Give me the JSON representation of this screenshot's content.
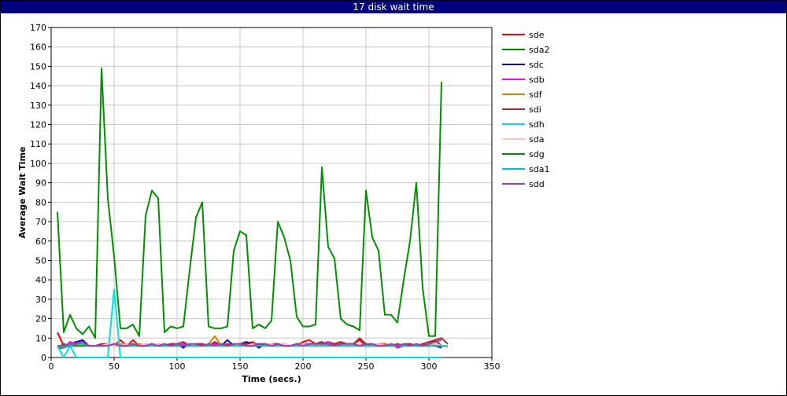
{
  "window": {
    "title": "17 disk wait time"
  },
  "chart_data": {
    "type": "line",
    "title": "17 disk wait time",
    "xlabel": "Time (secs.)",
    "ylabel": "Average Wait Time",
    "xlim": [
      0,
      350
    ],
    "ylim": [
      0,
      170
    ],
    "xticks": [
      0,
      50,
      100,
      150,
      200,
      250,
      300,
      350
    ],
    "yticks": [
      0,
      10,
      20,
      30,
      40,
      50,
      60,
      70,
      80,
      90,
      100,
      110,
      120,
      130,
      140,
      150,
      160,
      170
    ],
    "grid": true,
    "legend": "right",
    "x": [
      5,
      10,
      15,
      20,
      25,
      30,
      35,
      40,
      45,
      50,
      55,
      60,
      65,
      70,
      75,
      80,
      85,
      90,
      95,
      100,
      105,
      110,
      115,
      120,
      125,
      130,
      135,
      140,
      145,
      150,
      155,
      160,
      165,
      170,
      175,
      180,
      185,
      190,
      195,
      200,
      205,
      210,
      215,
      220,
      225,
      230,
      235,
      240,
      245,
      250,
      255,
      260,
      265,
      270,
      275,
      280,
      285,
      290,
      295,
      300,
      305,
      310,
      315
    ],
    "series": [
      {
        "name": "sde",
        "color": "#ff0000",
        "values": [
          13,
          6,
          7,
          7,
          8,
          6,
          6,
          6,
          7,
          6,
          9,
          6,
          9,
          6,
          6,
          7,
          6,
          7,
          6,
          6,
          7,
          6,
          7,
          6,
          6,
          7,
          6,
          6,
          7,
          6,
          7,
          8,
          6,
          6,
          7,
          7,
          6,
          6,
          6,
          8,
          9,
          7,
          7,
          8,
          7,
          8,
          6,
          7,
          9,
          6,
          6,
          6,
          7,
          6,
          6,
          7,
          6,
          7,
          6,
          7,
          9,
          6,
          null
        ]
      },
      {
        "name": "sda2",
        "color": "#008000",
        "values": [
          5,
          7,
          6,
          6,
          6,
          6,
          6,
          6,
          7,
          6,
          6,
          6,
          7,
          6,
          7,
          6,
          7,
          6,
          7,
          6,
          6,
          7,
          6,
          6,
          7,
          6,
          7,
          6,
          7,
          7,
          6,
          6,
          7,
          7,
          6,
          6,
          7,
          6,
          7,
          6,
          7,
          7,
          6,
          7,
          7,
          6,
          7,
          7,
          6,
          7,
          6,
          7,
          6,
          7,
          6,
          7,
          7,
          6,
          7,
          6,
          7,
          6,
          null
        ]
      },
      {
        "name": "sdc",
        "color": "#0000c0",
        "values": [
          5,
          5,
          7,
          8,
          9,
          6,
          6,
          6,
          7,
          6,
          6,
          6,
          7,
          6,
          6,
          7,
          6,
          6,
          7,
          7,
          5,
          7,
          6,
          7,
          6,
          8,
          6,
          9,
          6,
          7,
          8,
          7,
          5,
          7,
          6,
          7,
          6,
          6,
          6,
          7,
          6,
          7,
          8,
          6,
          7,
          6,
          7,
          7,
          6,
          7,
          6,
          7,
          7,
          6,
          6,
          6,
          7,
          6,
          6,
          7,
          6,
          5,
          null
        ]
      },
      {
        "name": "sdb",
        "color": "#ff00ff",
        "values": [
          6,
          5,
          8,
          7,
          8,
          6,
          6,
          6,
          7,
          6,
          6,
          7,
          6,
          6,
          7,
          6,
          7,
          6,
          7,
          6,
          7,
          6,
          6,
          7,
          6,
          7,
          6,
          7,
          6,
          7,
          7,
          6,
          6,
          7,
          6,
          6,
          7,
          6,
          6,
          7,
          7,
          7,
          6,
          8,
          6,
          7,
          6,
          7,
          6,
          6,
          7,
          6,
          6,
          7,
          5,
          6,
          6,
          7,
          6,
          6,
          7,
          6,
          null
        ]
      },
      {
        "name": "sdf",
        "color": "#e08000",
        "values": [
          5,
          6,
          6,
          7,
          7,
          6,
          6,
          6,
          7,
          6,
          7,
          6,
          6,
          7,
          6,
          6,
          7,
          6,
          7,
          7,
          6,
          6,
          7,
          6,
          7,
          11,
          6,
          7,
          6,
          7,
          7,
          6,
          6,
          7,
          6,
          6,
          7,
          6,
          7,
          6,
          7,
          6,
          7,
          6,
          7,
          7,
          6,
          6,
          7,
          6,
          6,
          7,
          7,
          6,
          7,
          6,
          7,
          6,
          6,
          6,
          7,
          6,
          null
        ]
      },
      {
        "name": "sdi",
        "color": "#a52a2a",
        "values": [
          6,
          6,
          6,
          7,
          7,
          6,
          6,
          7,
          7,
          6,
          6,
          7,
          6,
          6,
          7,
          6,
          7,
          6,
          7,
          7,
          8,
          6,
          7,
          7,
          6,
          8,
          6,
          7,
          6,
          7,
          7,
          7,
          7,
          6,
          7,
          7,
          6,
          6,
          7,
          7,
          6,
          7,
          8,
          6,
          7,
          8,
          7,
          7,
          10,
          7,
          6,
          7,
          6,
          6,
          7,
          6,
          7,
          6,
          7,
          8,
          9,
          10,
          7
        ]
      },
      {
        "name": "sdh",
        "color": "#00e0e0",
        "values": [
          6,
          0,
          6,
          0,
          0,
          0,
          0,
          0,
          0,
          35,
          0,
          0,
          0,
          0,
          0,
          0,
          0,
          0,
          0,
          0,
          0,
          0,
          0,
          0,
          0,
          0,
          0,
          0,
          0,
          0,
          0,
          0,
          0,
          0,
          0,
          0,
          0,
          0,
          0,
          0,
          0,
          0,
          0,
          0,
          0,
          0,
          0,
          0,
          0,
          0,
          0,
          0,
          0,
          0,
          0,
          0,
          0,
          0,
          0,
          0,
          0,
          0,
          null
        ]
      },
      {
        "name": "sda",
        "color": "#ffc0c0",
        "values": [
          6,
          6,
          7,
          7,
          7,
          6,
          6,
          6,
          7,
          6,
          6,
          7,
          6,
          6,
          7,
          6,
          7,
          6,
          6,
          7,
          6,
          7,
          6,
          6,
          7,
          6,
          7,
          6,
          6,
          7,
          6,
          7,
          6,
          6,
          7,
          6,
          7,
          6,
          6,
          7,
          6,
          7,
          6,
          7,
          6,
          6,
          7,
          6,
          7,
          6,
          6,
          7,
          6,
          7,
          6,
          7,
          6,
          7,
          6,
          7,
          7,
          6,
          5
        ]
      },
      {
        "name": "sdg",
        "color": "#009000",
        "values": [
          75,
          13,
          22,
          15,
          12,
          16,
          10,
          149,
          82,
          52,
          15,
          15,
          17,
          11,
          73,
          86,
          82,
          13,
          16,
          15,
          16,
          45,
          72,
          80,
          16,
          15,
          15,
          16,
          55,
          65,
          63,
          15,
          17,
          15,
          19,
          70,
          62,
          50,
          21,
          16,
          16,
          17,
          98,
          57,
          51,
          20,
          17,
          16,
          14,
          86,
          62,
          55,
          22,
          22,
          18,
          40,
          60,
          90,
          36,
          11,
          11,
          142,
          null
        ]
      },
      {
        "name": "sda1",
        "color": "#00c0c0",
        "values": [
          6,
          5,
          6,
          7,
          7,
          6,
          6,
          6,
          6,
          7,
          6,
          6,
          6,
          6,
          6,
          6,
          6,
          6,
          6,
          6,
          6,
          6,
          6,
          6,
          6,
          6,
          6,
          6,
          6,
          6,
          6,
          6,
          6,
          6,
          6,
          6,
          6,
          6,
          6,
          6,
          6,
          6,
          6,
          6,
          6,
          6,
          6,
          6,
          6,
          6,
          6,
          6,
          6,
          6,
          6,
          6,
          6,
          6,
          6,
          6,
          6,
          6,
          6
        ]
      },
      {
        "name": "sdd",
        "color": "#a040a0",
        "values": [
          6,
          6,
          7,
          7,
          8,
          6,
          6,
          6,
          6,
          7,
          6,
          6,
          7,
          6,
          6,
          7,
          6,
          7,
          6,
          7,
          6,
          7,
          7,
          6,
          7,
          6,
          7,
          6,
          7,
          7,
          6,
          6,
          7,
          7,
          6,
          7,
          6,
          6,
          7,
          6,
          7,
          7,
          7,
          7,
          6,
          7,
          7,
          7,
          6,
          7,
          7,
          6,
          6,
          7,
          6,
          7,
          6,
          7,
          6,
          7,
          8,
          9,
          null
        ]
      }
    ]
  }
}
